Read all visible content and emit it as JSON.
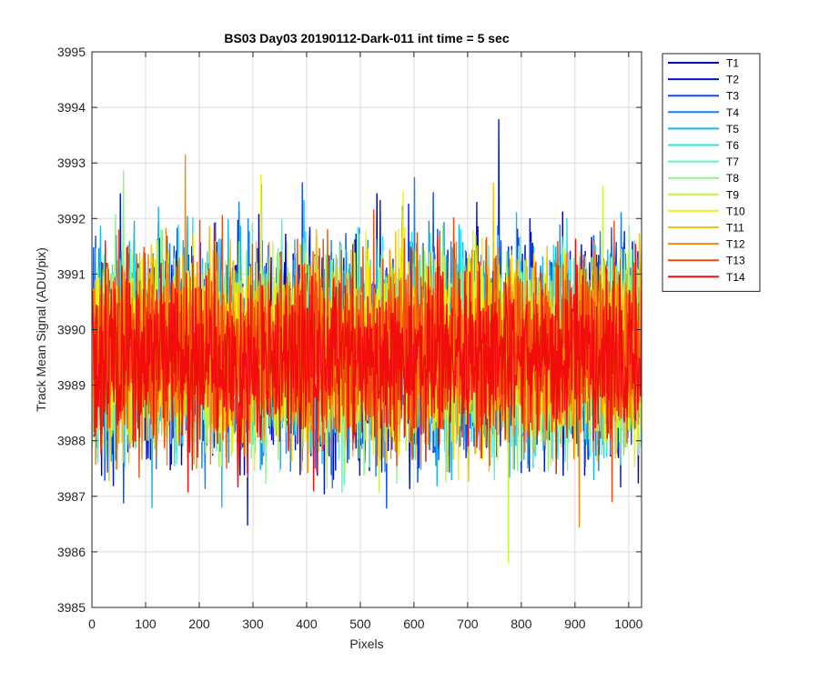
{
  "chart_data": {
    "type": "line",
    "title": "BS03 Day03 20190112-Dark-011 int time = 5 sec",
    "xlabel": "Pixels",
    "ylabel": "Track Mean Signal (ADU/pix)",
    "xlim": [
      0,
      1024
    ],
    "ylim": [
      3985,
      3995
    ],
    "xticks": [
      0,
      100,
      200,
      300,
      400,
      500,
      600,
      700,
      800,
      900,
      1000
    ],
    "yticks": [
      3985,
      3986,
      3987,
      3988,
      3989,
      3990,
      3991,
      3992,
      3993,
      3994,
      3995
    ],
    "grid": true,
    "legend_position": "outside-top-right",
    "n_points": 1024,
    "series": [
      {
        "name": "T1",
        "color": "#0000bf",
        "mean": 3989.6,
        "spread": 1.1
      },
      {
        "name": "T2",
        "color": "#0017d9",
        "mean": 3989.6,
        "spread": 1.1
      },
      {
        "name": "T3",
        "color": "#0a50ec",
        "mean": 3989.6,
        "spread": 1.1
      },
      {
        "name": "T4",
        "color": "#1683f0",
        "mean": 3989.7,
        "spread": 1.1
      },
      {
        "name": "T5",
        "color": "#16b7f0",
        "mean": 3989.7,
        "spread": 1.1
      },
      {
        "name": "T6",
        "color": "#1ee8ec",
        "mean": 3989.7,
        "spread": 1.0
      },
      {
        "name": "T7",
        "color": "#5ef2c8",
        "mean": 3989.6,
        "spread": 1.0
      },
      {
        "name": "T8",
        "color": "#8bf58a",
        "mean": 3989.6,
        "spread": 1.0
      },
      {
        "name": "T9",
        "color": "#c6f53f",
        "mean": 3989.6,
        "spread": 1.0
      },
      {
        "name": "T10",
        "color": "#f5f00a",
        "mean": 3989.7,
        "spread": 1.0
      },
      {
        "name": "T11",
        "color": "#f5c20a",
        "mean": 3989.6,
        "spread": 1.0
      },
      {
        "name": "T12",
        "color": "#f58a0a",
        "mean": 3989.6,
        "spread": 1.0
      },
      {
        "name": "T13",
        "color": "#f24c0c",
        "mean": 3989.6,
        "spread": 1.0
      },
      {
        "name": "T14",
        "color": "#f20c0c",
        "mean": 3989.5,
        "spread": 0.9
      }
    ]
  }
}
